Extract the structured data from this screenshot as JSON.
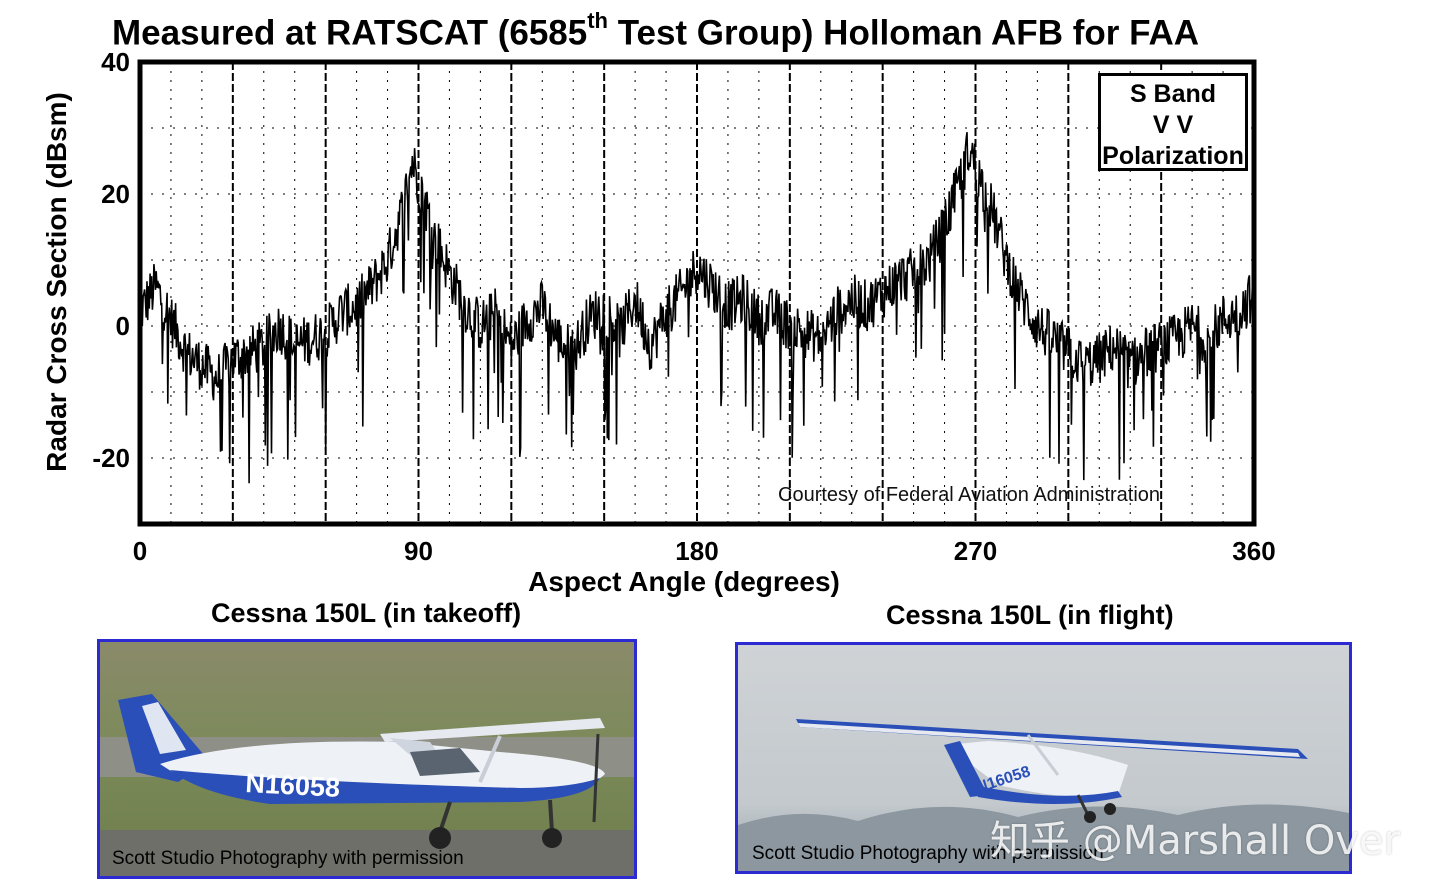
{
  "chart_data": {
    "type": "line",
    "title_main": "Measured at RATSCAT (6585",
    "title_sup": "th",
    "title_rest": " Test Group) Holloman AFB for FAA",
    "xlabel": "Aspect Angle (degrees)",
    "ylabel": "Radar Cross Section (dBsm)",
    "xlim": [
      0,
      360
    ],
    "ylim": [
      -30,
      40
    ],
    "xticks": [
      "0",
      "90",
      "180",
      "270",
      "360"
    ],
    "xtick_values": [
      0,
      90,
      180,
      270,
      360
    ],
    "yticks": [
      "40",
      "20",
      "0",
      "-20"
    ],
    "ytick_values": [
      40,
      20,
      0,
      -20
    ],
    "grid": true,
    "legend_lines": [
      "S Band",
      "V V",
      "Polarization"
    ],
    "annotation": "Courtesy of Federal Aviation Administration",
    "series": [
      {
        "x": [
          0,
          5,
          10,
          15,
          20,
          25,
          30,
          35,
          40,
          45,
          50,
          55,
          60,
          65,
          70,
          75,
          80,
          85,
          88,
          90,
          95,
          100,
          105,
          110,
          115,
          120,
          125,
          130,
          135,
          140,
          145,
          150,
          155,
          160,
          165,
          170,
          175,
          180,
          185,
          190,
          195,
          200,
          205,
          210,
          215,
          220,
          225,
          230,
          235,
          240,
          245,
          250,
          255,
          260,
          265,
          268,
          270,
          275,
          280,
          285,
          290,
          295,
          300,
          305,
          310,
          315,
          320,
          325,
          330,
          335,
          340,
          345,
          350,
          355,
          360
        ],
        "values": [
          2,
          6,
          1,
          -4,
          -6,
          -8,
          -5,
          -4,
          -3,
          0,
          -3,
          -2,
          -1,
          2,
          3,
          6,
          10,
          18,
          25,
          22,
          14,
          8,
          3,
          0,
          2,
          -3,
          1,
          3,
          -2,
          -4,
          1,
          3,
          -1,
          4,
          -3,
          2,
          5,
          9,
          6,
          3,
          4,
          1,
          2,
          0,
          -1,
          -2,
          2,
          4,
          3,
          5,
          7,
          8,
          10,
          15,
          22,
          27,
          24,
          18,
          10,
          4,
          0,
          -2,
          -4,
          -6,
          -5,
          -3,
          -6,
          -4,
          -3,
          -2,
          0,
          -2,
          1,
          2,
          5
        ]
      }
    ]
  },
  "photos": {
    "left": {
      "caption": "Cessna 150L (in takeoff)",
      "registration": "N16058",
      "credit": "Scott Studio Photography with permission"
    },
    "right": {
      "caption": "Cessna 150L (in flight)",
      "registration": "N16058",
      "credit": "Scott Studio Photography with permission"
    }
  },
  "watermark": "知乎 @Marshall Over",
  "colors": {
    "aircraft_blue": "#2a4fb8",
    "photo_border": "#2b2bd1"
  }
}
